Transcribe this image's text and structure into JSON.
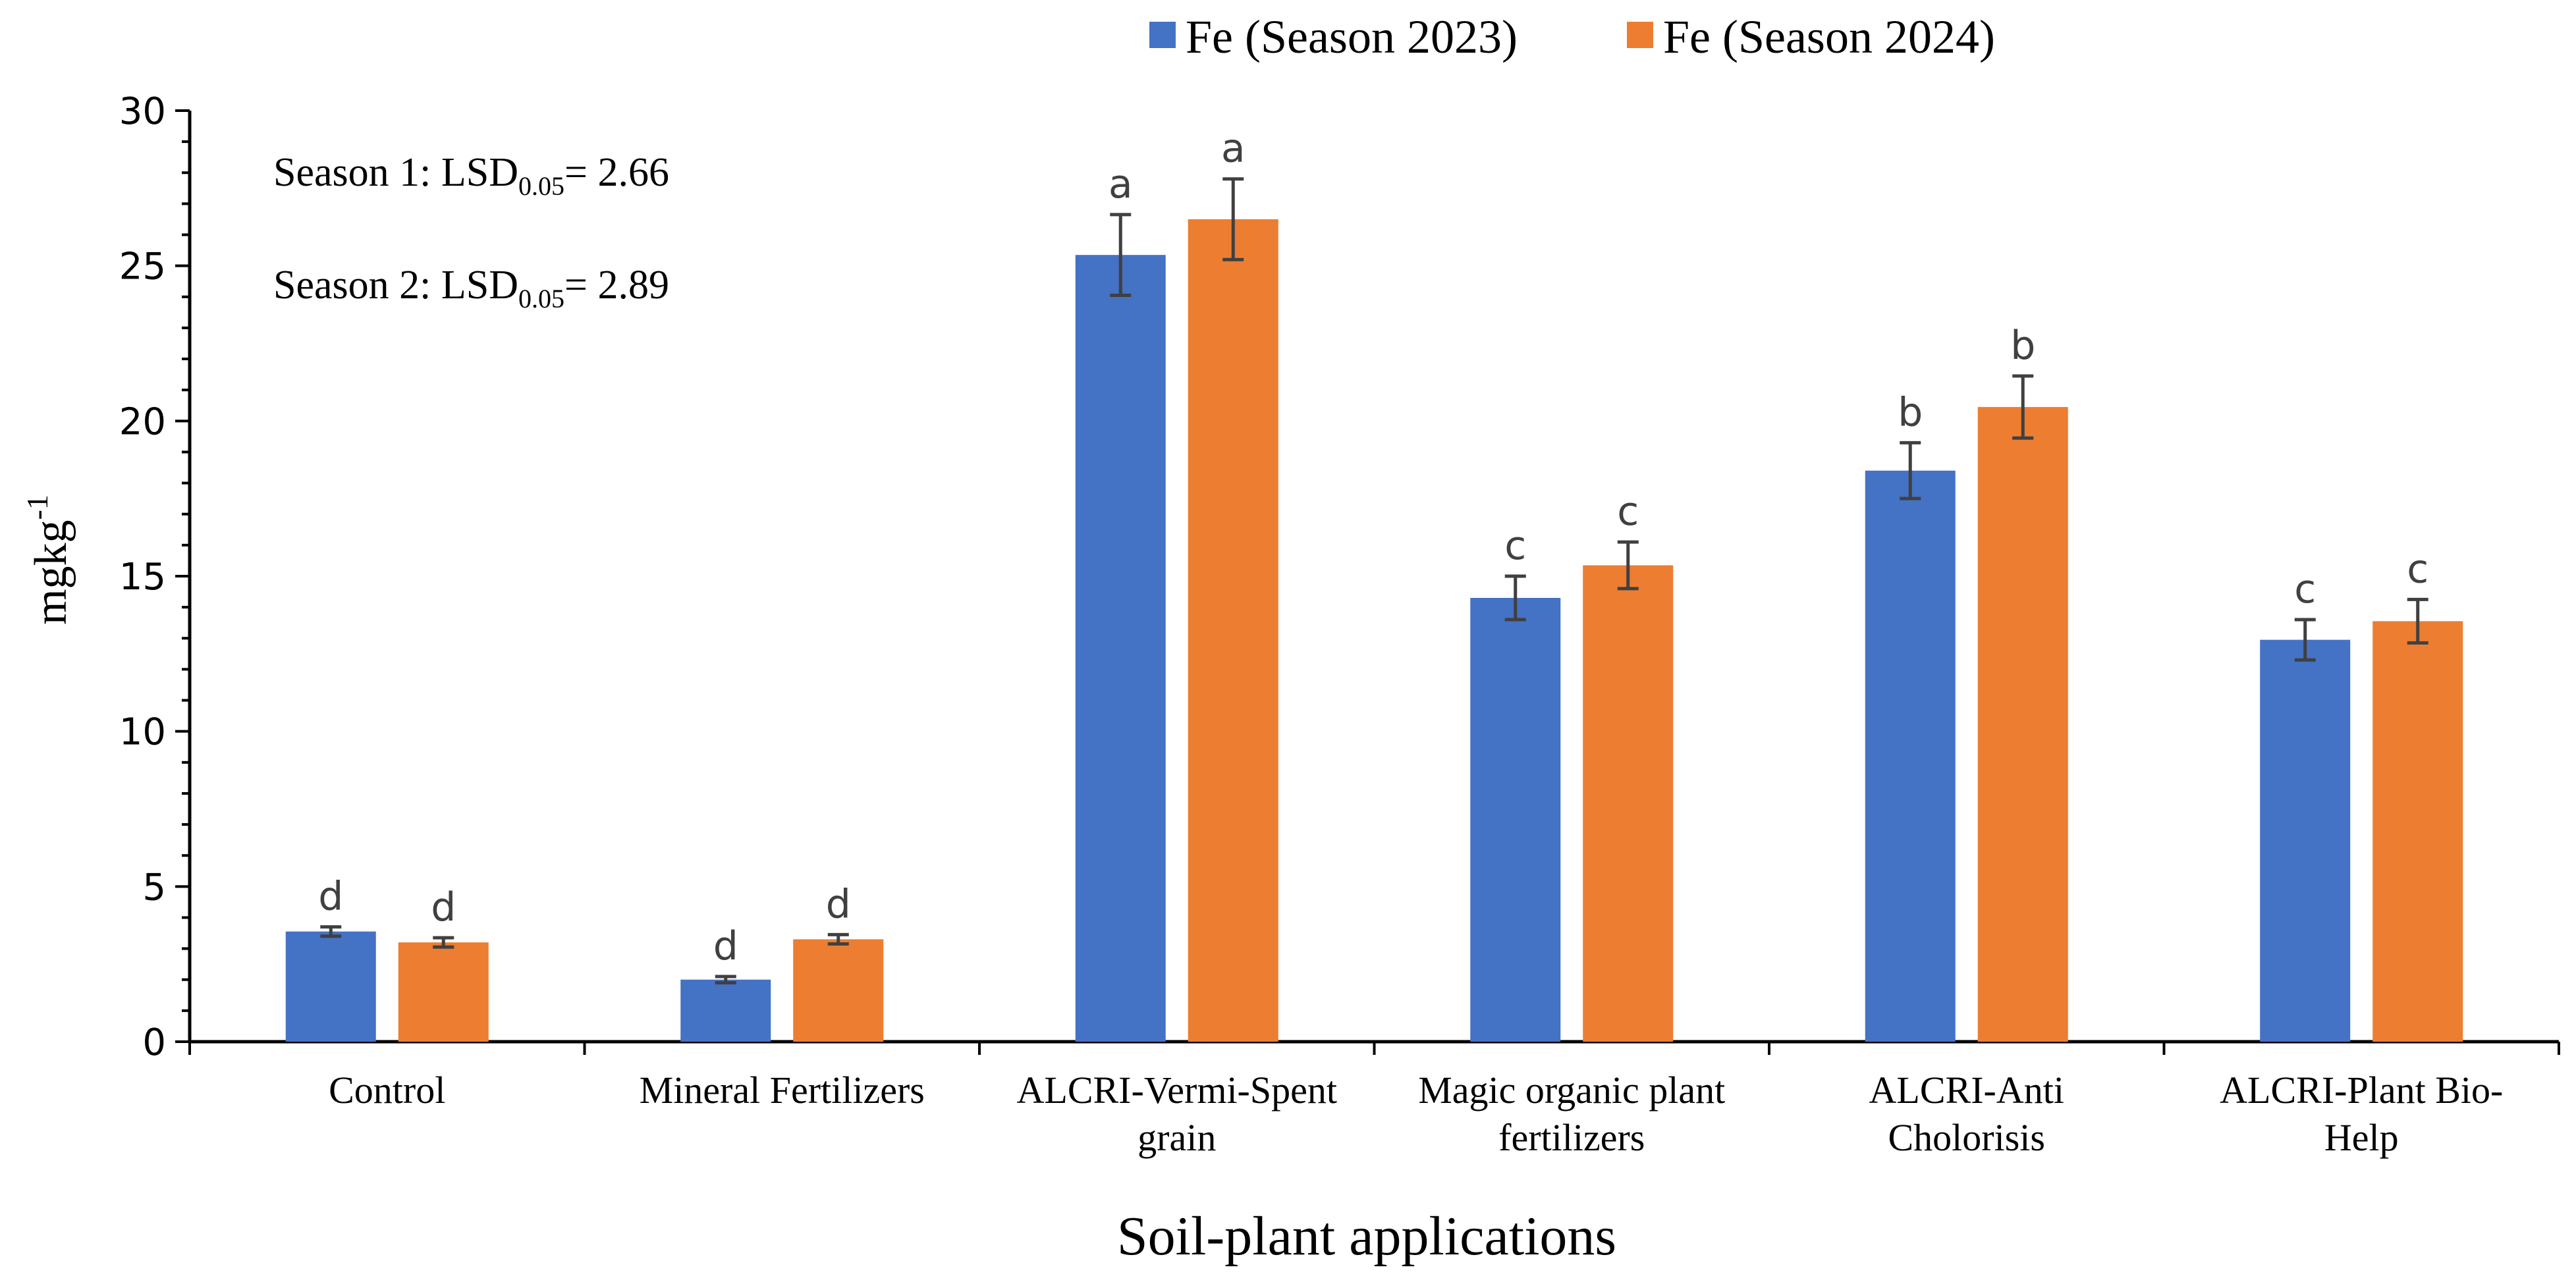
{
  "chart_data": {
    "type": "bar",
    "xlabel": "Soil-plant applications",
    "ylabel": {
      "base": "mgkg",
      "superscript": "-1"
    },
    "ylim": [
      0,
      30
    ],
    "yticks": [
      0,
      5,
      10,
      15,
      20,
      25,
      30
    ],
    "ytick_labels": [
      "0",
      "5",
      "10",
      "15",
      "20",
      "25",
      "30"
    ],
    "categories": [
      [
        "Control"
      ],
      [
        "Mineral Fertilizers"
      ],
      [
        "ALCRI-Vermi-Spent",
        "grain"
      ],
      [
        "Magic organic plant",
        "fertilizers"
      ],
      [
        "ALCRI-Anti",
        "Cholorisis"
      ],
      [
        "ALCRI-Plant Bio-",
        "Help"
      ]
    ],
    "series": [
      {
        "name": "Fe (Season 2023)",
        "color": "#4472C4",
        "values": [
          3.55,
          2.0,
          25.35,
          14.3,
          18.4,
          12.95
        ],
        "errors": [
          0.15,
          0.1,
          1.3,
          0.7,
          0.9,
          0.65
        ],
        "letters": [
          "d",
          "d",
          "a",
          "c",
          "b",
          "c"
        ]
      },
      {
        "name": "Fe (Season 2024)",
        "color": "#ED7D31",
        "values": [
          3.2,
          3.3,
          26.5,
          15.35,
          20.45,
          13.55
        ],
        "errors": [
          0.15,
          0.15,
          1.3,
          0.75,
          1.0,
          0.7
        ],
        "letters": [
          "d",
          "d",
          "a",
          "c",
          "b",
          "c"
        ]
      }
    ],
    "annotations": [
      {
        "label": "Season 1: LSD",
        "subscript": "0.05",
        "value": "= 2.66"
      },
      {
        "label": "Season 2: LSD",
        "subscript": "0.05",
        "value": "= 2.89"
      }
    ],
    "legend_position": "top-center"
  }
}
